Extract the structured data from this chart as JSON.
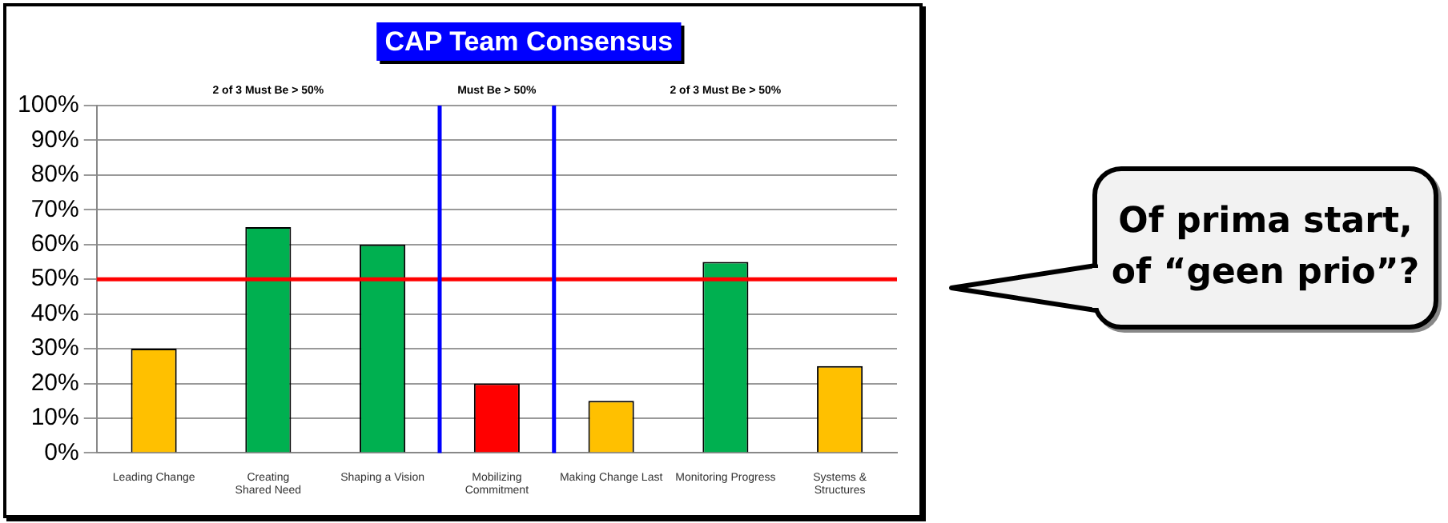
{
  "chart_data": {
    "type": "bar",
    "title": "CAP Team Consensus",
    "categories": [
      "Leading Change",
      "Creating Shared Need",
      "Shaping a Vision",
      "Mobilizing Commitment",
      "Making Change Last",
      "Monitoring Progress",
      "Systems & Structures"
    ],
    "values": [
      30,
      65,
      60,
      20,
      15,
      55,
      25
    ],
    "colors": [
      "#ffc000",
      "#00b050",
      "#00b050",
      "#ff0000",
      "#ffc000",
      "#00b050",
      "#ffc000"
    ],
    "ylim": [
      0,
      100
    ],
    "yticks": [
      {
        "value": 0,
        "label": "0%"
      },
      {
        "value": 10,
        "label": "10%"
      },
      {
        "value": 20,
        "label": "20%"
      },
      {
        "value": 30,
        "label": "30%"
      },
      {
        "value": 40,
        "label": "40%"
      },
      {
        "value": 50,
        "label": "50%"
      },
      {
        "value": 60,
        "label": "60%"
      },
      {
        "value": 70,
        "label": "70%"
      },
      {
        "value": 80,
        "label": "80%"
      },
      {
        "value": 90,
        "label": "90%"
      },
      {
        "value": 100,
        "label": "100%"
      }
    ],
    "grid": "y",
    "ref_lines": [
      {
        "axis": "y",
        "value": 50,
        "color": "#ff0000"
      }
    ],
    "annotations": [
      "2 of 3 Must Be > 50%",
      "Must Be > 50%",
      "2 of 3 Must Be > 50%",
      "Of prima start, of “geen prio”?"
    ]
  }
}
